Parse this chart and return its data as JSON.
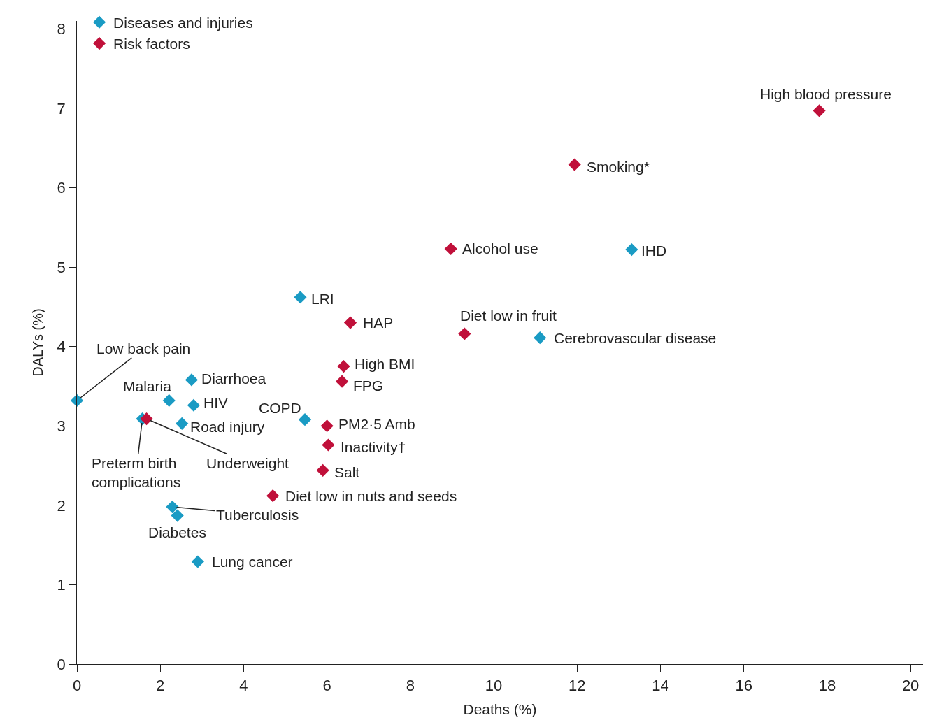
{
  "chart_data": {
    "type": "scatter",
    "xlabel": "Deaths (%)",
    "ylabel": "DALYs (%)",
    "xlim": [
      0,
      20.3
    ],
    "ylim": [
      0,
      8.1
    ],
    "xticks": [
      0,
      2,
      4,
      6,
      8,
      10,
      12,
      14,
      16,
      18,
      20
    ],
    "yticks": [
      0,
      1,
      2,
      3,
      4,
      5,
      6,
      7,
      8
    ],
    "legend": "top left",
    "marker": "diamond",
    "series": [
      {
        "name": "Diseases and injuries",
        "color": "#1a9bc4",
        "x": [
          0,
          2.21,
          2.75,
          2.8,
          2.52,
          1.57,
          5.47,
          5.36,
          13.31,
          11.11,
          2.29,
          2.41,
          2.9
        ],
        "values": [
          3.32,
          3.32,
          3.58,
          3.26,
          3.03,
          3.09,
          3.08,
          4.62,
          5.22,
          4.11,
          1.98,
          1.87,
          1.29
        ]
      },
      {
        "name": "Risk factors",
        "color": "#c0103a",
        "x": [
          1.67,
          17.81,
          11.94,
          8.97,
          9.3,
          6.56,
          6.4,
          6.36,
          6.0,
          6.03,
          5.9,
          4.7
        ],
        "values": [
          3.09,
          6.97,
          6.29,
          5.23,
          4.16,
          4.3,
          3.75,
          3.56,
          3.0,
          2.76,
          2.44,
          2.12
        ]
      }
    ],
    "annotations": [
      {
        "text": "Low back pain",
        "x": 0,
        "y": 3.32
      },
      {
        "text": "Malaria",
        "x": 2.21,
        "y": 3.32
      },
      {
        "text": "Diarrhoea",
        "x": 2.75,
        "y": 3.58
      },
      {
        "text": "HIV",
        "x": 2.8,
        "y": 3.26
      },
      {
        "text": "Road injury",
        "x": 2.52,
        "y": 3.03
      },
      {
        "text": "Preterm birth\ncomplications",
        "x": 1.57,
        "y": 3.09
      },
      {
        "text": "Underweight",
        "x": 1.67,
        "y": 3.09
      },
      {
        "text": "COPD",
        "x": 5.47,
        "y": 3.08
      },
      {
        "text": "LRI",
        "x": 5.36,
        "y": 4.62
      },
      {
        "text": "IHD",
        "x": 13.31,
        "y": 5.22
      },
      {
        "text": "Cerebrovascular disease",
        "x": 11.11,
        "y": 4.11
      },
      {
        "text": "Tuberculosis",
        "x": 2.29,
        "y": 1.98
      },
      {
        "text": "Diabetes",
        "x": 2.41,
        "y": 1.87
      },
      {
        "text": "Lung cancer",
        "x": 2.9,
        "y": 1.29
      },
      {
        "text": "High blood pressure",
        "x": 17.81,
        "y": 6.97
      },
      {
        "text": "Smoking*",
        "x": 11.94,
        "y": 6.29
      },
      {
        "text": "Alcohol use",
        "x": 8.97,
        "y": 5.23
      },
      {
        "text": "Diet low in fruit",
        "x": 9.3,
        "y": 4.16
      },
      {
        "text": "HAP",
        "x": 6.56,
        "y": 4.3
      },
      {
        "text": "High BMI",
        "x": 6.4,
        "y": 3.75
      },
      {
        "text": "FPG",
        "x": 6.36,
        "y": 3.56
      },
      {
        "text": "PM2·5 Amb",
        "x": 6.0,
        "y": 3.0
      },
      {
        "text": "Inactivity†",
        "x": 6.03,
        "y": 2.76
      },
      {
        "text": "Salt",
        "x": 5.9,
        "y": 2.44
      },
      {
        "text": "Diet low in nuts and seeds",
        "x": 4.7,
        "y": 2.12
      }
    ]
  }
}
